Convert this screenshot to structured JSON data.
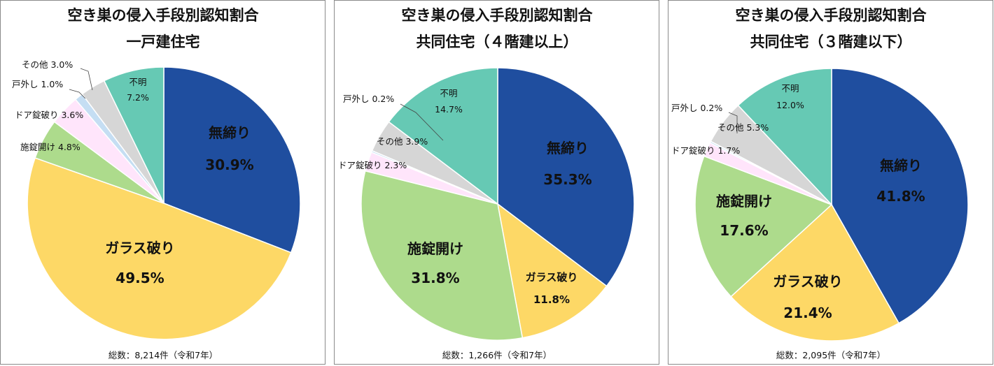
{
  "chart_data": [
    {
      "type": "pie",
      "title": "空き巣の侵入手段別認知割合",
      "subtitle": "一戸建住宅",
      "total_note": "総数：8,214件（令和7年）",
      "categories": [
        "無締り",
        "ガラス破り",
        "施錠開け",
        "ドア錠破り",
        "戸外し",
        "その他",
        "不明"
      ],
      "values": [
        30.9,
        49.5,
        4.8,
        3.6,
        1.0,
        3.0,
        7.2
      ],
      "value_labels": [
        "30.9%",
        "49.5%",
        "4.8%",
        "3.6%",
        "1.0%",
        "3.0%",
        "7.2%"
      ],
      "unit": "%"
    },
    {
      "type": "pie",
      "title": "空き巣の侵入手段別認知割合",
      "subtitle": "共同住宅（４階建以上）",
      "total_note": "総数：1,266件（令和7年）",
      "categories": [
        "無締り",
        "ガラス破り",
        "施錠開け",
        "ドア錠破り",
        "戸外し",
        "その他",
        "不明"
      ],
      "values": [
        35.3,
        11.8,
        31.8,
        2.3,
        0.2,
        3.9,
        14.7
      ],
      "value_labels": [
        "35.3%",
        "11.8%",
        "31.8%",
        "2.3%",
        "0.2%",
        "3.9%",
        "14.7%"
      ],
      "unit": "%"
    },
    {
      "type": "pie",
      "title": "空き巣の侵入手段別認知割合",
      "subtitle": "共同住宅（３階建以下）",
      "total_note": "総数：2,095件（令和7年）",
      "categories": [
        "無締り",
        "ガラス破り",
        "施錠開け",
        "ドア錠破り",
        "戸外し",
        "その他",
        "不明"
      ],
      "values": [
        41.8,
        21.4,
        17.6,
        1.7,
        0.2,
        5.3,
        12.0
      ],
      "value_labels": [
        "41.8%",
        "21.4%",
        "17.6%",
        "1.7%",
        "0.2%",
        "5.3%",
        "12.0%"
      ],
      "unit": "%"
    }
  ],
  "colors": {
    "無締り": "#1f4e9f",
    "ガラス破り": "#fdd866",
    "施錠開け": "#addb8c",
    "ドア錠破り": "#ffe5fb",
    "戸外し": "#c5def3",
    "その他": "#d6d6d6",
    "不明": "#66c9b4"
  }
}
